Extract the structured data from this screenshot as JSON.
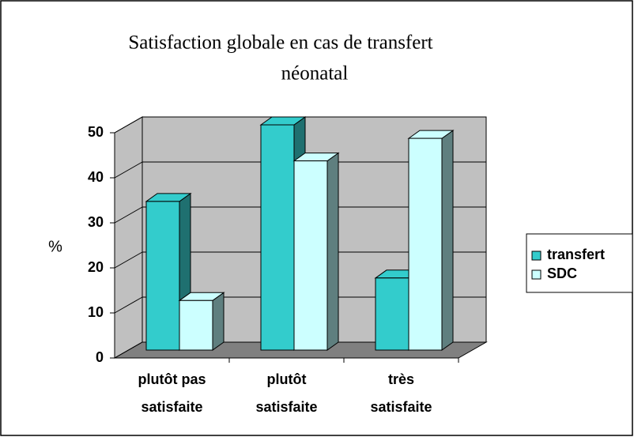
{
  "chart_data": {
    "type": "bar3d",
    "title": [
      "Satisfaction globale en cas de transfert",
      "néonatal"
    ],
    "ylabel": "%",
    "categories": [
      [
        "plutôt pas",
        "satisfaite"
      ],
      [
        "plutôt",
        "satisfaite"
      ],
      [
        "très",
        "satisfaite"
      ]
    ],
    "series": [
      {
        "name": "transfert",
        "color": "#33cccc",
        "side": "#1f7070",
        "values": [
          33,
          50,
          16
        ]
      },
      {
        "name": "SDC",
        "color": "#ccffff",
        "side": "#5f7f7f",
        "values": [
          11,
          42,
          47
        ]
      }
    ],
    "ylim": [
      0,
      50
    ],
    "yticks": [
      0,
      10,
      20,
      30,
      40,
      50
    ],
    "grid": true,
    "legend": "right"
  }
}
